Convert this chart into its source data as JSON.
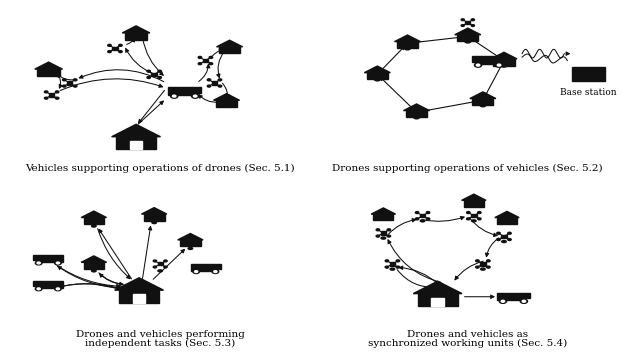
{
  "panels": [
    {
      "lines": [
        "Vehicles supporting operations of drones (Sec. 5.1)"
      ]
    },
    {
      "lines": [
        "Drones supporting operations of vehicles (Sec. 5.2)"
      ]
    },
    {
      "lines": [
        "Drones and vehicles performing",
        "independent tasks (Sec. 5.3)"
      ]
    },
    {
      "lines": [
        "Drones and vehicles as",
        "synchronized working units (Sec. 5.4)"
      ]
    },
    {
      "base_station": "Base station"
    }
  ],
  "ic": "#111111",
  "fs": 7.5
}
